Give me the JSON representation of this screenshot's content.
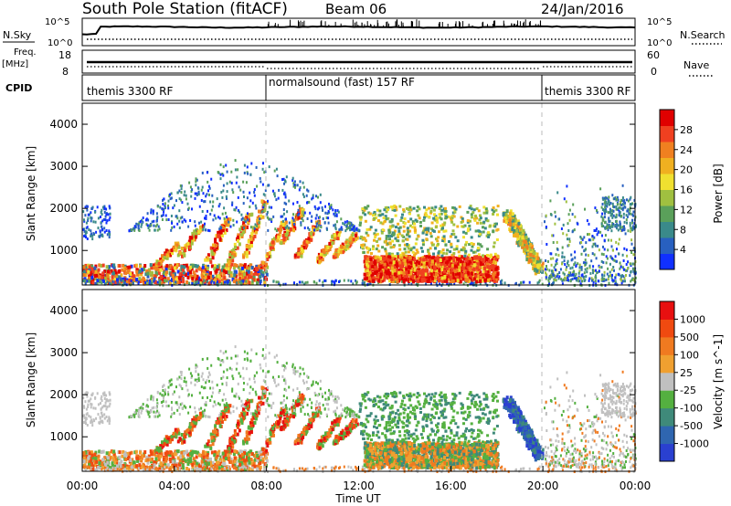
{
  "header": {
    "title": "South Pole Station (fitACF)",
    "beam": "Beam 06",
    "date": "24/Jan/2016"
  },
  "top_panels": {
    "nsky_label": "N.Sky",
    "nsearch_label": "N.Search",
    "nsky_ticks": [
      "10^5",
      "10^0"
    ],
    "nsearch_ticks": [
      "10^5",
      "10^0"
    ],
    "freq_label_1": "Freq.",
    "freq_label_2": "[MHz]",
    "freq_ticks": [
      "18",
      "8"
    ],
    "nave_label": "Nave",
    "nave_ticks": [
      "60",
      "0"
    ],
    "cpid_label": "CPID",
    "cpid_segments": [
      {
        "label": "themis 3300 RF",
        "start": 0,
        "end": 8
      },
      {
        "label": "normalsound (fast) 157 RF",
        "start": 8,
        "end": 20
      },
      {
        "label": "themis 3300 RF",
        "start": 20,
        "end": 24
      }
    ]
  },
  "chart_data": [
    {
      "type": "heatmap",
      "title": "",
      "xlabel": "",
      "ylabel": "Slant Range [km]",
      "xlim": [
        0,
        24
      ],
      "ylim": [
        180,
        4500
      ],
      "y_ticks": [
        "1000",
        "2000",
        "3000",
        "4000"
      ],
      "colorbar": {
        "label": "Power [dB]",
        "ticks": [
          "4",
          "8",
          "12",
          "16",
          "20",
          "24",
          "28"
        ],
        "colors": [
          "#1030ff",
          "#2860c0",
          "#3a8a8a",
          "#5aa05a",
          "#a0c040",
          "#f0e030",
          "#f0b020",
          "#f08020",
          "#f04020",
          "#e00000"
        ]
      }
    },
    {
      "type": "heatmap",
      "title": "",
      "xlabel": "Time UT",
      "ylabel": "Slant Range [km]",
      "xlim": [
        0,
        24
      ],
      "ylim": [
        180,
        4500
      ],
      "x_ticks": [
        "00:00",
        "04:00",
        "08:00",
        "12:00",
        "16:00",
        "20:00",
        "00:00"
      ],
      "y_ticks": [
        "1000",
        "2000",
        "3000",
        "4000"
      ],
      "colorbar": {
        "label": "Velocity [m s^-1]",
        "ticks": [
          "1000",
          "500",
          "100",
          "25",
          "-25",
          "-100",
          "-500",
          "-1000"
        ],
        "colors": [
          "#2a40d0",
          "#2f66b0",
          "#3f8a7a",
          "#54b040",
          "#c0c0c0",
          "#f0a030",
          "#f07a20",
          "#f04a10",
          "#e81010"
        ]
      }
    }
  ]
}
